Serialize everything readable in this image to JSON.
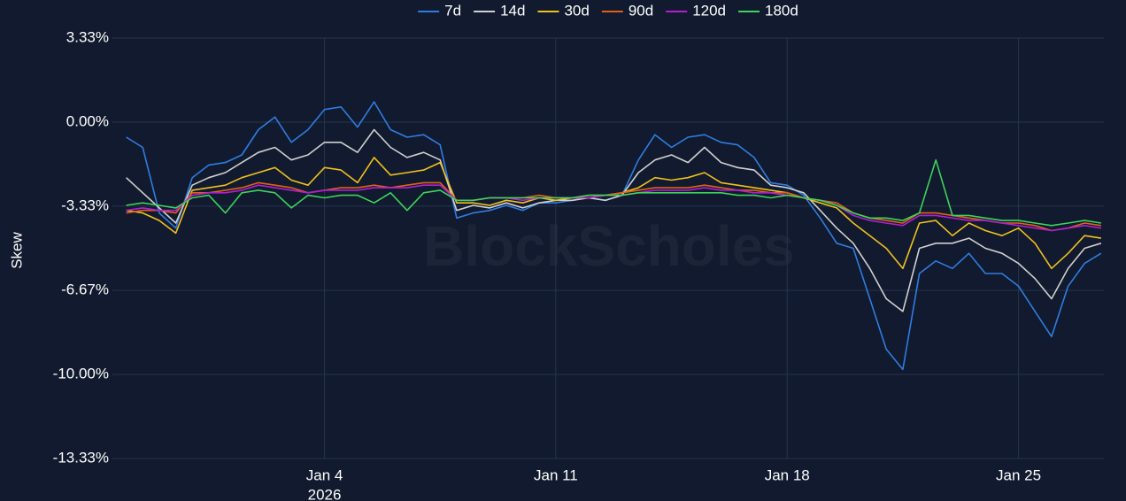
{
  "chart_data": {
    "type": "line",
    "y_label": "Skew",
    "watermark": "BlockScholes",
    "x": [
      "2025-12-29T00:00",
      "2025-12-29T12:00",
      "2025-12-30T00:00",
      "2025-12-30T12:00",
      "2025-12-31T00:00",
      "2025-12-31T12:00",
      "2026-01-01T00:00",
      "2026-01-01T12:00",
      "2026-01-02T00:00",
      "2026-01-02T12:00",
      "2026-01-03T00:00",
      "2026-01-03T12:00",
      "2026-01-04T00:00",
      "2026-01-04T12:00",
      "2026-01-05T00:00",
      "2026-01-05T12:00",
      "2026-01-06T00:00",
      "2026-01-06T12:00",
      "2026-01-07T00:00",
      "2026-01-07T12:00",
      "2026-01-08T00:00",
      "2026-01-08T12:00",
      "2026-01-09T00:00",
      "2026-01-09T12:00",
      "2026-01-10T00:00",
      "2026-01-10T12:00",
      "2026-01-11T00:00",
      "2026-01-11T12:00",
      "2026-01-12T00:00",
      "2026-01-12T12:00",
      "2026-01-13T00:00",
      "2026-01-13T12:00",
      "2026-01-14T00:00",
      "2026-01-14T12:00",
      "2026-01-15T00:00",
      "2026-01-15T12:00",
      "2026-01-16T00:00",
      "2026-01-16T12:00",
      "2026-01-17T00:00",
      "2026-01-17T12:00",
      "2026-01-18T00:00",
      "2026-01-18T12:00",
      "2026-01-19T00:00",
      "2026-01-19T12:00",
      "2026-01-20T00:00",
      "2026-01-20T12:00",
      "2026-01-21T00:00",
      "2026-01-21T12:00",
      "2026-01-22T00:00",
      "2026-01-22T12:00",
      "2026-01-23T00:00",
      "2026-01-23T12:00",
      "2026-01-24T00:00",
      "2026-01-24T12:00",
      "2026-01-25T00:00",
      "2026-01-25T12:00",
      "2026-01-26T00:00",
      "2026-01-26T12:00",
      "2026-01-27T00:00",
      "2026-01-27T12:00"
    ],
    "xlim": [
      "2025-12-28T14:00",
      "2026-01-27T14:00"
    ],
    "xticks": [
      {
        "value": "2026-01-04",
        "label": "Jan 4"
      },
      {
        "value": "2026-01-11",
        "label": "Jan 11"
      },
      {
        "value": "2026-01-18",
        "label": "Jan 18"
      },
      {
        "value": "2026-01-25",
        "label": "Jan 25"
      }
    ],
    "x_year": "2026",
    "ylim": [
      -13.33,
      3.33
    ],
    "yticks": [
      {
        "value": 3.33,
        "label": "3.33%"
      },
      {
        "value": 0,
        "label": "0.00%"
      },
      {
        "value": -3.33,
        "label": "-3.33%"
      },
      {
        "value": -6.67,
        "label": "-6.67%"
      },
      {
        "value": -10,
        "label": "-10.00%"
      },
      {
        "value": -13.33,
        "label": "-13.33%"
      }
    ],
    "grid": true,
    "legend": "top",
    "series": [
      {
        "name": "7d",
        "color": "#2f7de1",
        "values": [
          -0.6,
          -1.0,
          -3.6,
          -4.2,
          -2.2,
          -1.7,
          -1.6,
          -1.3,
          -0.3,
          0.2,
          -0.8,
          -0.3,
          0.5,
          0.6,
          -0.2,
          0.8,
          -0.3,
          -0.6,
          -0.5,
          -0.9,
          -3.8,
          -3.6,
          -3.5,
          -3.3,
          -3.5,
          -3.2,
          -3.2,
          -3.1,
          -3.0,
          -3.1,
          -2.9,
          -1.5,
          -0.5,
          -1.0,
          -0.6,
          -0.5,
          -0.8,
          -0.9,
          -1.4,
          -2.4,
          -2.5,
          -2.9,
          -3.8,
          -4.8,
          -5.0,
          -7.0,
          -9.0,
          -9.8,
          -6.0,
          -5.5,
          -5.8,
          -5.2,
          -6.0,
          -6.0,
          -6.5,
          -7.5,
          -8.5,
          -6.5,
          -5.6,
          -5.2
        ]
      },
      {
        "name": "14d",
        "color": "#d0d0d0",
        "values": [
          -2.2,
          -2.8,
          -3.4,
          -4.0,
          -2.5,
          -2.2,
          -2.0,
          -1.6,
          -1.2,
          -1.0,
          -1.5,
          -1.3,
          -0.8,
          -0.8,
          -1.2,
          -0.3,
          -1.0,
          -1.4,
          -1.2,
          -1.5,
          -3.5,
          -3.3,
          -3.4,
          -3.2,
          -3.4,
          -3.2,
          -3.1,
          -3.1,
          -3.0,
          -3.1,
          -2.9,
          -2.0,
          -1.5,
          -1.3,
          -1.6,
          -1.0,
          -1.6,
          -1.8,
          -1.9,
          -2.5,
          -2.6,
          -2.8,
          -3.5,
          -4.2,
          -4.8,
          -5.8,
          -7.0,
          -7.5,
          -5.0,
          -4.8,
          -4.8,
          -4.6,
          -5.0,
          -5.2,
          -5.6,
          -6.2,
          -7.0,
          -5.8,
          -5.0,
          -4.8
        ]
      },
      {
        "name": "30d",
        "color": "#f0c020",
        "values": [
          -3.5,
          -3.6,
          -3.9,
          -4.4,
          -2.7,
          -2.6,
          -2.5,
          -2.2,
          -2.0,
          -1.8,
          -2.3,
          -2.5,
          -1.8,
          -1.9,
          -2.4,
          -1.4,
          -2.1,
          -2.0,
          -1.9,
          -1.6,
          -3.2,
          -3.2,
          -3.3,
          -3.1,
          -3.2,
          -3.0,
          -3.1,
          -3.0,
          -3.0,
          -2.9,
          -2.8,
          -2.6,
          -2.2,
          -2.3,
          -2.2,
          -2.0,
          -2.4,
          -2.5,
          -2.6,
          -2.7,
          -2.8,
          -3.0,
          -3.2,
          -3.4,
          -4.0,
          -4.5,
          -5.0,
          -5.8,
          -4.0,
          -3.9,
          -4.5,
          -4.0,
          -4.3,
          -4.5,
          -4.2,
          -4.8,
          -5.8,
          -5.2,
          -4.5,
          -4.6
        ]
      },
      {
        "name": "90d",
        "color": "#e0621a",
        "values": [
          -3.6,
          -3.5,
          -3.5,
          -3.6,
          -2.8,
          -2.8,
          -2.7,
          -2.6,
          -2.4,
          -2.5,
          -2.6,
          -2.8,
          -2.7,
          -2.6,
          -2.6,
          -2.5,
          -2.6,
          -2.5,
          -2.4,
          -2.4,
          -3.1,
          -3.1,
          -3.0,
          -3.0,
          -3.0,
          -2.9,
          -3.0,
          -3.0,
          -2.9,
          -2.9,
          -2.8,
          -2.7,
          -2.6,
          -2.6,
          -2.6,
          -2.5,
          -2.6,
          -2.7,
          -2.7,
          -2.8,
          -2.8,
          -3.0,
          -3.1,
          -3.2,
          -3.6,
          -3.8,
          -3.9,
          -4.0,
          -3.6,
          -3.6,
          -3.7,
          -3.8,
          -3.9,
          -4.0,
          -4.0,
          -4.1,
          -4.3,
          -4.2,
          -4.0,
          -4.1
        ]
      },
      {
        "name": "120d",
        "color": "#b020d0",
        "values": [
          -3.5,
          -3.4,
          -3.5,
          -3.5,
          -2.9,
          -2.8,
          -2.8,
          -2.7,
          -2.5,
          -2.6,
          -2.7,
          -2.8,
          -2.7,
          -2.7,
          -2.7,
          -2.6,
          -2.6,
          -2.6,
          -2.5,
          -2.5,
          -3.1,
          -3.1,
          -3.0,
          -3.0,
          -3.1,
          -3.0,
          -3.0,
          -3.0,
          -3.0,
          -2.9,
          -2.9,
          -2.8,
          -2.7,
          -2.7,
          -2.7,
          -2.6,
          -2.7,
          -2.7,
          -2.8,
          -2.8,
          -2.9,
          -3.0,
          -3.1,
          -3.3,
          -3.7,
          -3.9,
          -4.0,
          -4.1,
          -3.7,
          -3.7,
          -3.8,
          -3.9,
          -3.9,
          -4.0,
          -4.1,
          -4.2,
          -4.3,
          -4.2,
          -4.1,
          -4.2
        ]
      },
      {
        "name": "180d",
        "color": "#3dd45a",
        "values": [
          -3.3,
          -3.2,
          -3.3,
          -3.4,
          -3.0,
          -2.9,
          -3.6,
          -2.8,
          -2.7,
          -2.8,
          -3.4,
          -2.9,
          -3.0,
          -2.9,
          -2.9,
          -3.2,
          -2.8,
          -3.5,
          -2.8,
          -2.7,
          -3.1,
          -3.1,
          -3.0,
          -3.0,
          -3.0,
          -3.0,
          -3.0,
          -3.0,
          -2.9,
          -2.9,
          -2.9,
          -2.8,
          -2.8,
          -2.8,
          -2.8,
          -2.8,
          -2.8,
          -2.9,
          -2.9,
          -3.0,
          -2.9,
          -3.0,
          -3.1,
          -3.3,
          -3.6,
          -3.8,
          -3.8,
          -3.9,
          -3.6,
          -1.5,
          -3.7,
          -3.7,
          -3.8,
          -3.9,
          -3.9,
          -4.0,
          -4.1,
          -4.0,
          -3.9,
          -4.0
        ]
      }
    ]
  }
}
